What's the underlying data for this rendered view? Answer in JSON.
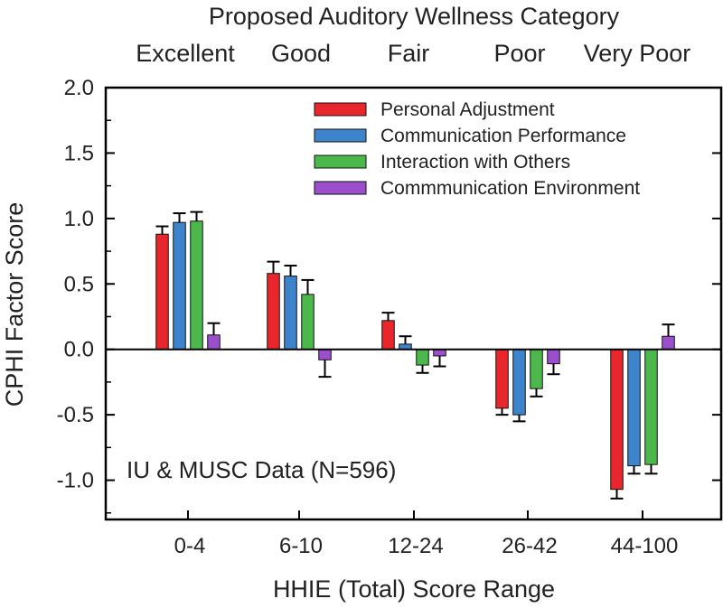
{
  "chart_data": {
    "type": "bar",
    "top_title": "Proposed Auditory Wellness Category",
    "wellness_categories": [
      "Excellent",
      "Good",
      "Fair",
      "Poor",
      "Very Poor"
    ],
    "categories": [
      "0-4",
      "6-10",
      "12-24",
      "26-42",
      "44-100"
    ],
    "xlabel": "HHIE (Total) Score Range",
    "ylabel": "CPHI Factor Score",
    "ylim": [
      -1.3,
      2.0
    ],
    "yticks": [
      -1.0,
      -0.5,
      0.0,
      0.5,
      1.0,
      1.5,
      2.0
    ],
    "ytick_labels": [
      "-1.0",
      "-0.5",
      "0.0",
      "0.5",
      "1.0",
      "1.5",
      "2.0"
    ],
    "annotation": "IU & MUSC Data (N=596)",
    "legend_position": "top-right",
    "grid": false,
    "series": [
      {
        "name": "Personal Adjustment",
        "color": "#e8262b",
        "values": [
          0.88,
          0.58,
          0.22,
          -0.45,
          -1.07
        ],
        "errors": [
          0.06,
          0.09,
          0.06,
          0.05,
          0.07
        ]
      },
      {
        "name": "Communication Performance",
        "color": "#3d84cc",
        "values": [
          0.97,
          0.56,
          0.04,
          -0.5,
          -0.89
        ],
        "errors": [
          0.07,
          0.08,
          0.06,
          0.05,
          0.06
        ]
      },
      {
        "name": "Interaction with Others",
        "color": "#4cb84c",
        "values": [
          0.98,
          0.42,
          -0.12,
          -0.3,
          -0.88
        ],
        "errors": [
          0.07,
          0.11,
          0.06,
          0.06,
          0.07
        ]
      },
      {
        "name": "Commmunication Environment",
        "color": "#9b4fcc",
        "values": [
          0.11,
          -0.08,
          -0.05,
          -0.11,
          0.1
        ],
        "errors": [
          0.09,
          0.13,
          0.08,
          0.08,
          0.09
        ]
      }
    ]
  }
}
